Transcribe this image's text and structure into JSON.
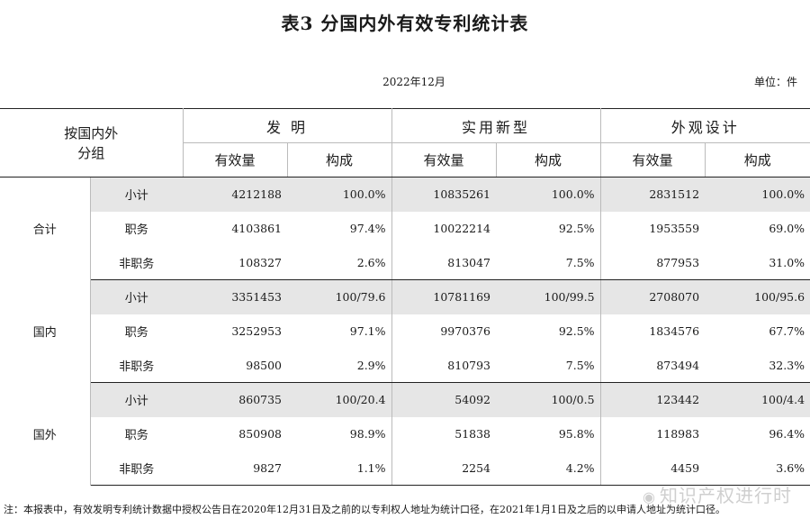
{
  "title": "表3  分国内外有效专利统计表",
  "date": "2022年12月",
  "unit": "单位：件",
  "header": {
    "corner": [
      "按国内外",
      "分组"
    ],
    "groups": [
      "发   明",
      "实用新型",
      "外观设计"
    ],
    "sub": [
      "有效量",
      "构成",
      "有效量",
      "构成",
      "有效量",
      "构成"
    ]
  },
  "sections": [
    {
      "name": "合计",
      "rows": [
        {
          "label": "小计",
          "cells": [
            "4212188",
            "100.0%",
            "10835261",
            "100.0%",
            "2831512",
            "100.0%"
          ]
        },
        {
          "label": "职务",
          "cells": [
            "4103861",
            "97.4%",
            "10022214",
            "92.5%",
            "1953559",
            "69.0%"
          ]
        },
        {
          "label": "非职务",
          "cells": [
            "108327",
            "2.6%",
            "813047",
            "7.5%",
            "877953",
            "31.0%"
          ]
        }
      ]
    },
    {
      "name": "国内",
      "rows": [
        {
          "label": "小计",
          "cells": [
            "3351453",
            "100/79.6",
            "10781169",
            "100/99.5",
            "2708070",
            "100/95.6"
          ]
        },
        {
          "label": "职务",
          "cells": [
            "3252953",
            "97.1%",
            "9970376",
            "92.5%",
            "1834576",
            "67.7%"
          ]
        },
        {
          "label": "非职务",
          "cells": [
            "98500",
            "2.9%",
            "810793",
            "7.5%",
            "873494",
            "32.3%"
          ]
        }
      ]
    },
    {
      "name": "国外",
      "rows": [
        {
          "label": "小计",
          "cells": [
            "860735",
            "100/20.4",
            "54092",
            "100/0.5",
            "123442",
            "100/4.4"
          ]
        },
        {
          "label": "职务",
          "cells": [
            "850908",
            "98.9%",
            "51838",
            "95.8%",
            "118983",
            "96.4%"
          ]
        },
        {
          "label": "非职务",
          "cells": [
            "9827",
            "1.1%",
            "2254",
            "4.2%",
            "4459",
            "3.6%"
          ]
        }
      ]
    }
  ],
  "footnote": "注：本报表中，有效发明专利统计数据中授权公告日在2020年12月31日及之前的以专利权人地址为统计口径，在2021年1月1日及之后的以申请人地址为统计口径。",
  "watermark": "知识产权进行时",
  "watermark_icon": "wechat-icon"
}
